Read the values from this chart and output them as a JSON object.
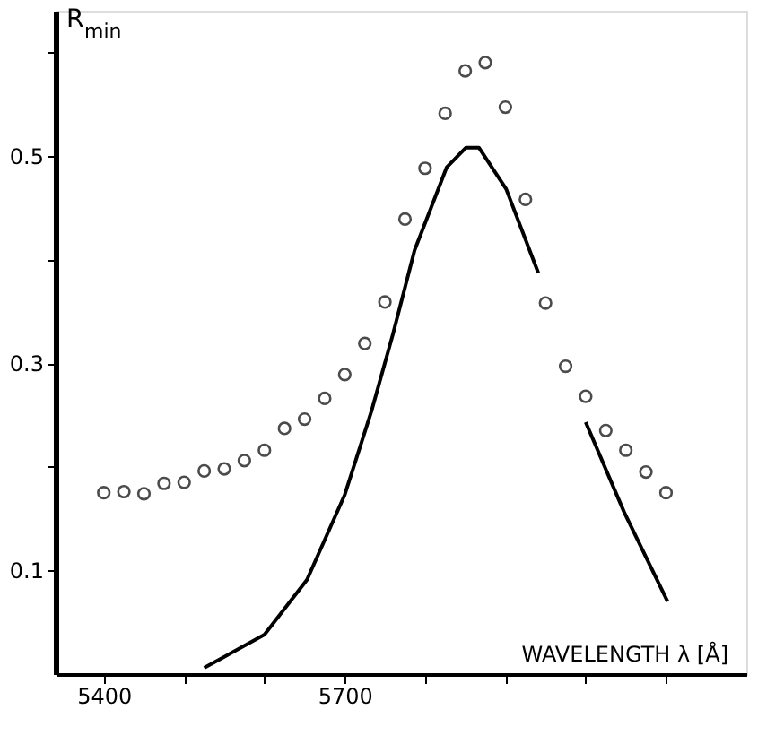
{
  "chart_data": {
    "type": "scatter",
    "xlabel": "WAVELENGTH λ [Å]",
    "ylabel": "R$_{min}$",
    "x": [
      5400,
      5425,
      5450,
      5475,
      5500,
      5525,
      5550,
      5575,
      5600,
      5625,
      5650,
      5675,
      5700,
      5725,
      5750,
      5775,
      5800,
      5825,
      5850,
      5875,
      5900,
      5925,
      5950,
      5975,
      6000,
      6025,
      6050,
      6075,
      6100
    ],
    "series": [
      {
        "color": "#000000",
        "marker": "circle",
        "values": [
          0.175,
          0.176,
          0.174,
          0.184,
          0.185,
          0.196,
          0.198,
          0.206,
          0.216,
          0.237,
          0.246,
          0.266,
          0.289,
          0.319,
          0.359,
          0.439,
          0.488,
          0.541,
          0.582,
          0.59,
          0.547,
          0.458,
          0.358,
          0.297,
          0.268,
          0.235,
          0.216,
          0.195,
          0.175
        ]
      },
      {
        "type": "line",
        "color": "#000000",
        "line_style": "solid",
        "marker": "none",
        "x": [
          5525,
          5600,
          5653,
          5700,
          5733,
          5760,
          5787,
          5827,
          5851,
          5867,
          5901,
          5941,
          5970,
          6000,
          6048,
          6102
        ],
        "values": [
          0.006,
          0.038,
          0.091,
          0.173,
          0.253,
          0.328,
          0.409,
          0.489,
          0.508,
          0.508,
          0.468,
          0.387,
          null,
          0.243,
          0.156,
          0.07
        ]
      }
    ],
    "xlim": [
      5340,
      6200
    ],
    "ylim": [
      0,
      0.64
    ],
    "xticks": [
      5400,
      {
        "value": 5500,
        "label": null
      },
      {
        "value": 5600,
        "label": null
      },
      5700,
      {
        "value": 5800,
        "label": null
      },
      {
        "value": 5900,
        "label": null
      },
      {
        "value": 6000,
        "label": null
      },
      {
        "value": 6100,
        "label": null
      }
    ],
    "yticks": [
      0.1,
      {
        "value": 0.2,
        "label": null
      },
      0.3,
      {
        "value": 0.4,
        "label": null
      },
      0.5,
      {
        "value": 0.6,
        "label": null
      }
    ],
    "grid": false
  }
}
